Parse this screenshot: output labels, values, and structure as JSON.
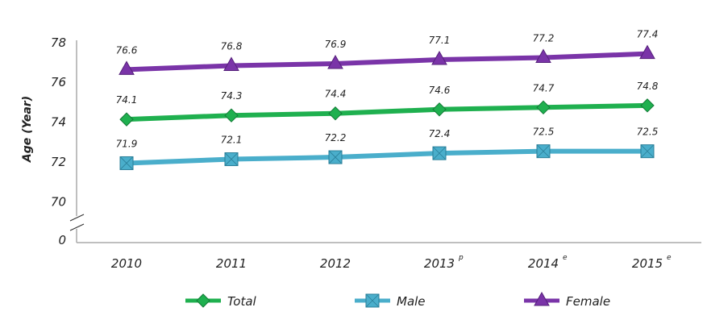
{
  "chart_data": {
    "type": "line",
    "title": "",
    "xlabel": "",
    "ylabel": "Age  (Year)",
    "categories": [
      "2010",
      "2011",
      "2012",
      "2013",
      "2014",
      "2015"
    ],
    "category_superscripts": [
      "",
      "",
      "",
      "p",
      "e",
      "e"
    ],
    "yticks": [
      "70",
      "72",
      "74",
      "76",
      "78"
    ],
    "ybreak_label": "0",
    "ylim": [
      70,
      78
    ],
    "grid": false,
    "legend_position": "bottom",
    "series": [
      {
        "name": "Total",
        "color": "#1fb04f",
        "marker": "diamond",
        "values": [
          74.1,
          74.3,
          74.4,
          74.6,
          74.7,
          74.8
        ]
      },
      {
        "name": "Male",
        "color": "#4aaecb",
        "marker": "square",
        "values": [
          71.9,
          72.1,
          72.2,
          72.4,
          72.5,
          72.5
        ]
      },
      {
        "name": "Female",
        "color": "#7a34a8",
        "marker": "triangle",
        "values": [
          76.6,
          76.8,
          76.9,
          77.1,
          77.2,
          77.4
        ]
      }
    ]
  }
}
